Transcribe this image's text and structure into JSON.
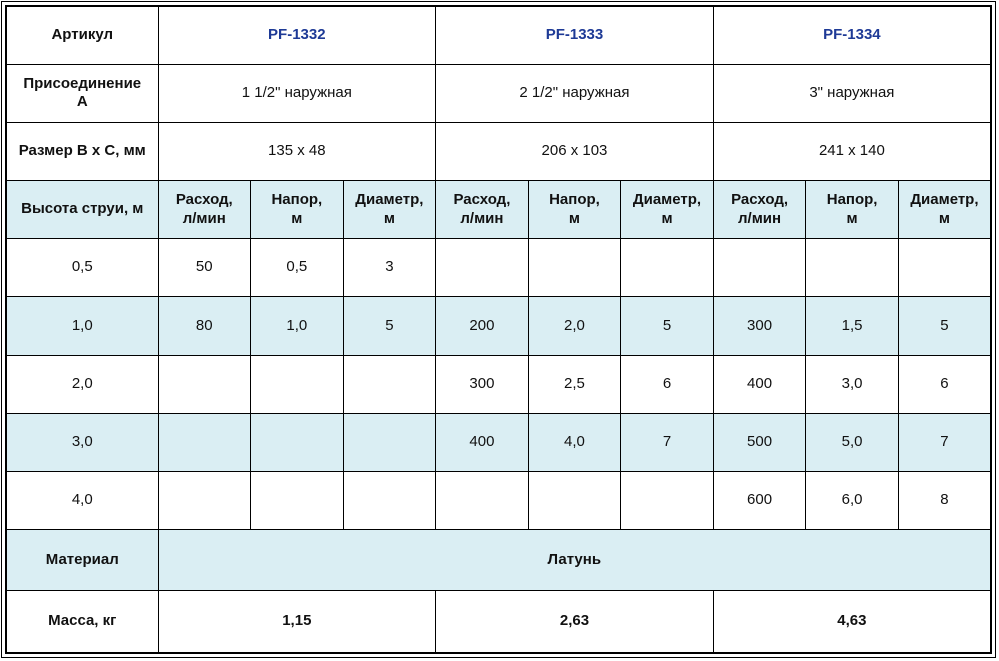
{
  "colors": {
    "accent_blue": "#1e3a96",
    "row_highlight": "#daeef3",
    "grid_border": "#000000"
  },
  "table": {
    "article_label": "Артикул",
    "articles": [
      "PF-1332",
      "PF-1333",
      "PF-1334"
    ],
    "connection_label": "Присоединение\nА",
    "connections": [
      "1 1/2\" наружная",
      "2 1/2\" наружная",
      "3\" наружная"
    ],
    "size_label": "Размер В х С, мм",
    "sizes": [
      "135 х 48",
      "206 х 103",
      "241 х 140"
    ],
    "jet_height_label": "Высота струи, м",
    "sub_headers": [
      "Расход,\nл/мин",
      "Напор,\nм",
      "Диаметр,\nм"
    ],
    "rows": [
      {
        "height": "0,5",
        "cells": [
          "50",
          "0,5",
          "3",
          "",
          "",
          "",
          "",
          "",
          ""
        ]
      },
      {
        "height": "1,0",
        "cells": [
          "80",
          "1,0",
          "5",
          "200",
          "2,0",
          "5",
          "300",
          "1,5",
          "5"
        ]
      },
      {
        "height": "2,0",
        "cells": [
          "",
          "",
          "",
          "300",
          "2,5",
          "6",
          "400",
          "3,0",
          "6"
        ]
      },
      {
        "height": "3,0",
        "cells": [
          "",
          "",
          "",
          "400",
          "4,0",
          "7",
          "500",
          "5,0",
          "7"
        ]
      },
      {
        "height": "4,0",
        "cells": [
          "",
          "",
          "",
          "",
          "",
          "",
          "600",
          "6,0",
          "8"
        ]
      }
    ],
    "material_label": "Материал",
    "material_value": "Латунь",
    "mass_label": "Масса, кг",
    "masses": [
      "1,15",
      "2,63",
      "4,63"
    ]
  }
}
